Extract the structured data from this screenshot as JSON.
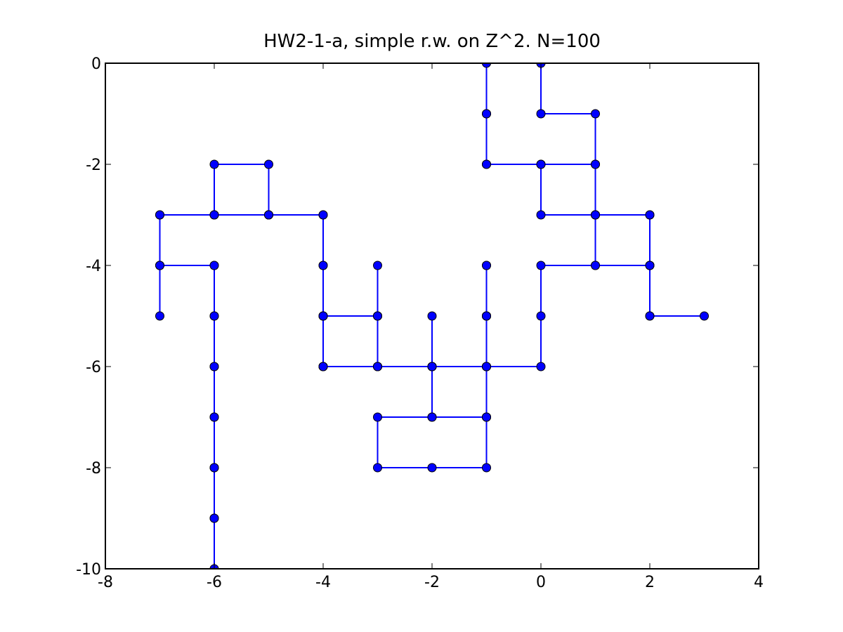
{
  "chart_data": {
    "type": "line",
    "title": "HW2-1-a, simple r.w. on Z^2. N=100",
    "xlabel": "",
    "ylabel": "",
    "xlim": [
      -8,
      4
    ],
    "ylim": [
      -10,
      0
    ],
    "x_ticks": [
      -8,
      -6,
      -4,
      -2,
      0,
      2,
      4
    ],
    "y_ticks": [
      0,
      -2,
      -4,
      -6,
      -8,
      -10
    ],
    "x_tick_labels": [
      "-8",
      "-6",
      "-4",
      "-2",
      "0",
      "2",
      "4"
    ],
    "y_tick_labels": [
      "0",
      "-2",
      "-4",
      "-6",
      "-8",
      "-10"
    ],
    "grid": false,
    "marker": "circle",
    "line_color": "#0000ff",
    "marker_color": "#0000ff",
    "series": [
      {
        "points": [
          [
            0,
            0
          ],
          [
            0,
            -1
          ],
          [
            1,
            -1
          ],
          [
            1,
            -2
          ],
          [
            1,
            -3
          ],
          [
            2,
            -3
          ],
          [
            2,
            -4
          ],
          [
            2,
            -5
          ],
          [
            3,
            -5
          ],
          [
            2,
            -5
          ],
          [
            2,
            -4
          ],
          [
            1,
            -4
          ],
          [
            1,
            -3
          ],
          [
            1,
            -2
          ],
          [
            0,
            -2
          ],
          [
            -1,
            -2
          ],
          [
            -1,
            -1
          ],
          [
            -1,
            0
          ],
          [
            -1,
            -1
          ],
          [
            -1,
            -2
          ],
          [
            0,
            -2
          ],
          [
            0,
            -3
          ],
          [
            1,
            -3
          ],
          [
            2,
            -3
          ],
          [
            2,
            -4
          ],
          [
            1,
            -4
          ],
          [
            0,
            -4
          ],
          [
            0,
            -5
          ],
          [
            0,
            -6
          ],
          [
            -1,
            -6
          ],
          [
            -1,
            -5
          ],
          [
            -1,
            -4
          ],
          [
            -1,
            -5
          ],
          [
            -1,
            -6
          ],
          [
            -1,
            -7
          ],
          [
            -1,
            -8
          ],
          [
            -2,
            -8
          ],
          [
            -3,
            -8
          ],
          [
            -3,
            -7
          ],
          [
            -2,
            -7
          ],
          [
            -1,
            -7
          ],
          [
            -1,
            -6
          ],
          [
            -2,
            -6
          ],
          [
            -2,
            -5
          ],
          [
            -2,
            -6
          ],
          [
            -3,
            -6
          ],
          [
            -3,
            -5
          ],
          [
            -3,
            -4
          ],
          [
            -3,
            -5
          ],
          [
            -4,
            -5
          ],
          [
            -4,
            -6
          ],
          [
            -3,
            -6
          ],
          [
            -2,
            -6
          ],
          [
            -2,
            -7
          ],
          [
            -1,
            -7
          ],
          [
            -1,
            -6
          ],
          [
            -1,
            -5
          ],
          [
            -1,
            -4
          ],
          [
            -1,
            -5
          ],
          [
            -1,
            -6
          ],
          [
            -2,
            -6
          ],
          [
            -3,
            -6
          ],
          [
            -4,
            -6
          ],
          [
            -4,
            -5
          ],
          [
            -3,
            -5
          ],
          [
            -3,
            -6
          ],
          [
            -4,
            -6
          ],
          [
            -4,
            -5
          ],
          [
            -4,
            -4
          ],
          [
            -4,
            -3
          ],
          [
            -5,
            -3
          ],
          [
            -6,
            -3
          ],
          [
            -6,
            -2
          ],
          [
            -5,
            -2
          ],
          [
            -5,
            -3
          ],
          [
            -6,
            -3
          ],
          [
            -7,
            -3
          ],
          [
            -7,
            -4
          ],
          [
            -7,
            -5
          ],
          [
            -7,
            -4
          ],
          [
            -6,
            -4
          ],
          [
            -6,
            -5
          ],
          [
            -6,
            -6
          ],
          [
            -6,
            -7
          ],
          [
            -6,
            -8
          ],
          [
            -6,
            -9
          ],
          [
            -6,
            -10
          ],
          [
            -6,
            -9
          ],
          [
            -6,
            -8
          ],
          [
            -6,
            -7
          ],
          [
            -6,
            -6
          ],
          [
            -6,
            -5
          ],
          [
            -6,
            -4
          ],
          [
            -7,
            -4
          ],
          [
            -7,
            -3
          ],
          [
            -6,
            -3
          ],
          [
            -5,
            -3
          ],
          [
            -4,
            -3
          ],
          [
            -4,
            -4
          ],
          [
            -4,
            -5
          ],
          [
            -4,
            -6
          ]
        ]
      }
    ]
  }
}
